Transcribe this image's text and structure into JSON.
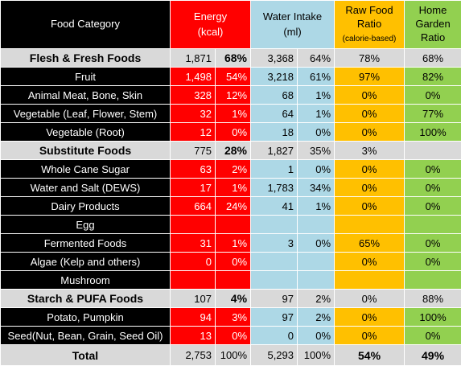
{
  "header": {
    "food_category": "Food Category",
    "energy": "Energy",
    "energy_unit": "(kcal)",
    "water": "Water Intake",
    "water_unit": "(ml)",
    "raw_food_1": "Raw Food",
    "raw_food_2": "Ratio",
    "raw_food_note": "(calorie-based)",
    "home_1": "Home",
    "home_2": "Garden",
    "home_3": "Ratio"
  },
  "rows": [
    {
      "name": "Flesh & Fresh Foods",
      "kcal": "1,871",
      "kcal_pct": "68%",
      "ml": "3,368",
      "ml_pct": "64%",
      "raw": "78%",
      "home": "68%"
    },
    {
      "name": "Fruit",
      "kcal": "1,498",
      "kcal_pct": "54%",
      "ml": "3,218",
      "ml_pct": "61%",
      "raw": "97%",
      "home": "82%"
    },
    {
      "name": "Animal Meat, Bone, Skin",
      "kcal": "328",
      "kcal_pct": "12%",
      "ml": "68",
      "ml_pct": "1%",
      "raw": "0%",
      "home": "0%"
    },
    {
      "name": "Vegetable (Leaf, Flower, Stem)",
      "kcal": "32",
      "kcal_pct": "1%",
      "ml": "64",
      "ml_pct": "1%",
      "raw": "0%",
      "home": "77%"
    },
    {
      "name": "Vegetable (Root)",
      "kcal": "12",
      "kcal_pct": "0%",
      "ml": "18",
      "ml_pct": "0%",
      "raw": "0%",
      "home": "100%"
    },
    {
      "name": "Substitute Foods",
      "kcal": "775",
      "kcal_pct": "28%",
      "ml": "1,827",
      "ml_pct": "35%",
      "raw": "3%",
      "home": ""
    },
    {
      "name": "Whole Cane Sugar",
      "kcal": "63",
      "kcal_pct": "2%",
      "ml": "1",
      "ml_pct": "0%",
      "raw": "0%",
      "home": "0%"
    },
    {
      "name": "Water and Salt (DEWS)",
      "kcal": "17",
      "kcal_pct": "1%",
      "ml": "1,783",
      "ml_pct": "34%",
      "raw": "0%",
      "home": "0%"
    },
    {
      "name": "Dairy Products",
      "kcal": "664",
      "kcal_pct": "24%",
      "ml": "41",
      "ml_pct": "1%",
      "raw": "0%",
      "home": "0%"
    },
    {
      "name": "Egg",
      "kcal": "",
      "kcal_pct": "",
      "ml": "",
      "ml_pct": "",
      "raw": "",
      "home": ""
    },
    {
      "name": "Fermented Foods",
      "kcal": "31",
      "kcal_pct": "1%",
      "ml": "3",
      "ml_pct": "0%",
      "raw": "65%",
      "home": "0%"
    },
    {
      "name": "Algae (Kelp and others)",
      "kcal": "0",
      "kcal_pct": "0%",
      "ml": "",
      "ml_pct": "",
      "raw": "0%",
      "home": "0%"
    },
    {
      "name": "Mushroom",
      "kcal": "",
      "kcal_pct": "",
      "ml": "",
      "ml_pct": "",
      "raw": "",
      "home": ""
    },
    {
      "name": "Starch & PUFA Foods",
      "kcal": "107",
      "kcal_pct": "4%",
      "ml": "97",
      "ml_pct": "2%",
      "raw": "0%",
      "home": "88%"
    },
    {
      "name": "Potato, Pumpkin",
      "kcal": "94",
      "kcal_pct": "3%",
      "ml": "97",
      "ml_pct": "2%",
      "raw": "0%",
      "home": "100%"
    },
    {
      "name": "Seed(Nut, Bean, Grain, Seed Oil)",
      "kcal": "13",
      "kcal_pct": "0%",
      "ml": "0",
      "ml_pct": "0%",
      "raw": "0%",
      "home": "0%"
    }
  ],
  "total": {
    "name": "Total",
    "kcal": "2,753",
    "kcal_pct": "100%",
    "ml": "5,293",
    "ml_pct": "100%",
    "raw": "54%",
    "home": "49%"
  }
}
